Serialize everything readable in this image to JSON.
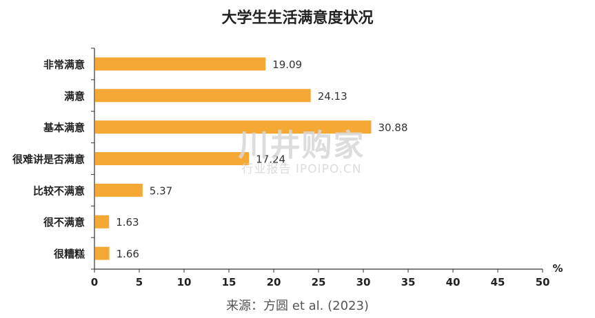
{
  "chart_data": {
    "type": "bar",
    "orientation": "horizontal",
    "title": "大学生生活满意度状况",
    "categories": [
      "非常满意",
      "满意",
      "基本满意",
      "很难讲是否满意",
      "比较不满意",
      "很不满意",
      "很糟糕"
    ],
    "values": [
      19.09,
      24.13,
      30.88,
      17.24,
      5.37,
      1.63,
      1.66
    ],
    "value_labels": [
      "19.09",
      "24.13",
      "30.88",
      "17.24",
      "5.37",
      "1.63",
      "1.66"
    ],
    "xlim": [
      0,
      50
    ],
    "xticks": [
      "0",
      "5",
      "10",
      "15",
      "20",
      "25",
      "30",
      "35",
      "40",
      "45",
      "50"
    ],
    "xunit": "%",
    "bar_color": "#F5A833",
    "grid": false
  },
  "source": "来源：方圆 et al. (2023)",
  "watermark": {
    "main": "川井购家",
    "sub": "行业报告 IPOIPO.CN"
  }
}
